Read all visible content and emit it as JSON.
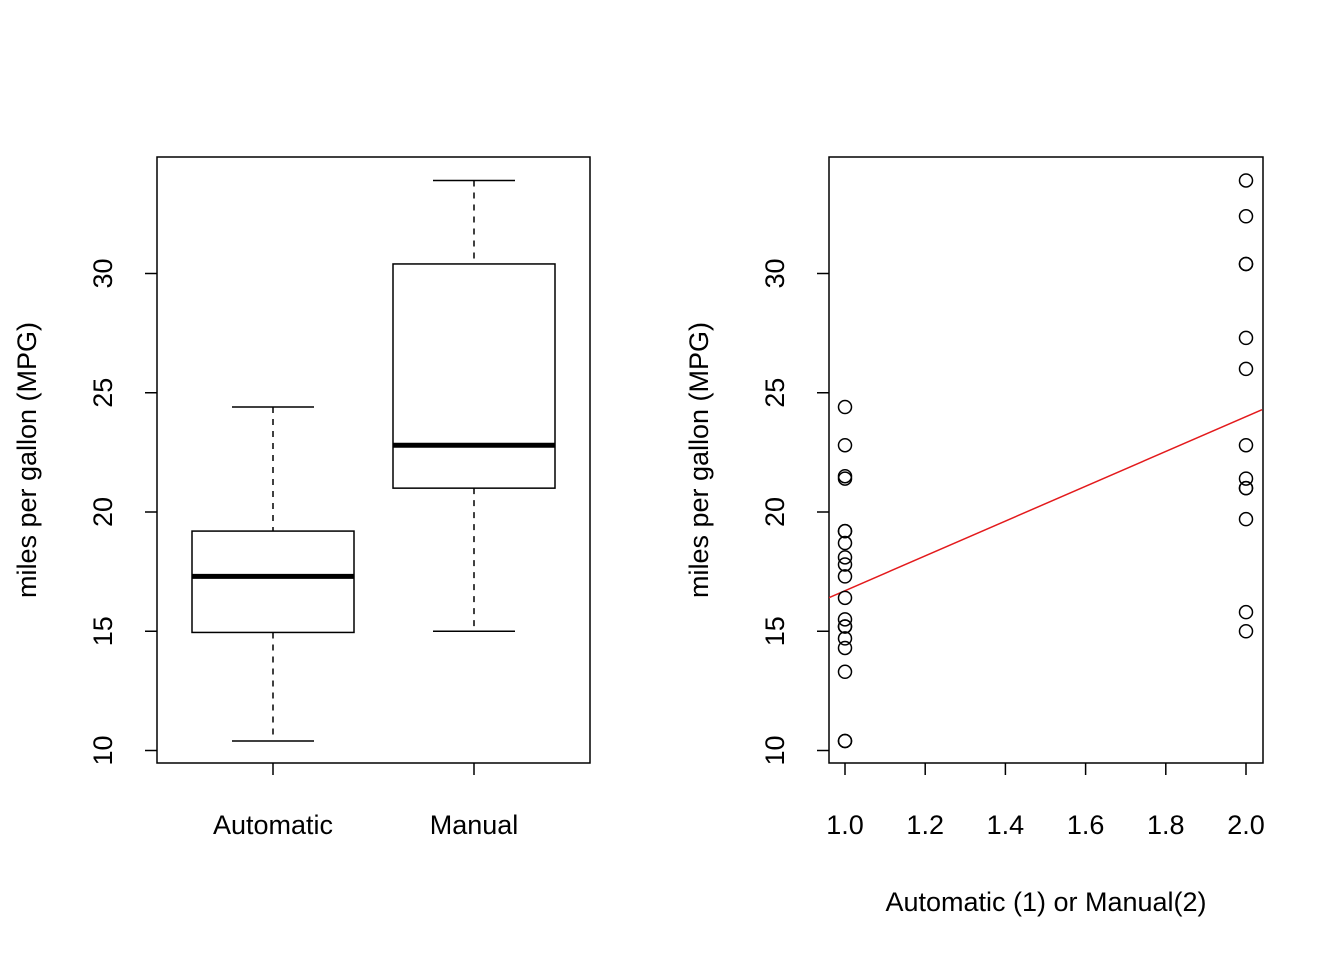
{
  "chart_data": [
    {
      "type": "box",
      "title": "",
      "xlabel": "",
      "ylabel": "miles per gallon (MPG)",
      "ylim": [
        9.5,
        35
      ],
      "yticks": [
        10,
        15,
        20,
        25,
        30
      ],
      "categories": [
        "Automatic",
        "Manual"
      ],
      "boxes": [
        {
          "name": "Automatic",
          "min": 10.4,
          "q1": 14.95,
          "median": 17.3,
          "q3": 19.2,
          "max": 24.4
        },
        {
          "name": "Manual",
          "min": 15.0,
          "q1": 21.0,
          "median": 22.8,
          "q3": 30.4,
          "max": 33.9
        }
      ],
      "grid": false
    },
    {
      "type": "scatter",
      "title": "",
      "xlabel": "Automatic (1) or Manual(2)",
      "ylabel": "miles per gallon (MPG)",
      "xlim": [
        0.96,
        2.04
      ],
      "ylim": [
        9.5,
        35
      ],
      "xticks": [
        "1.0",
        "1.2",
        "1.4",
        "1.6",
        "1.8",
        "2.0"
      ],
      "yticks": [
        10,
        15,
        20,
        25,
        30
      ],
      "x": [
        1,
        1,
        1,
        1,
        1,
        1,
        1,
        1,
        1,
        1,
        1,
        1,
        1,
        1,
        1,
        1,
        1,
        1,
        1,
        2,
        2,
        2,
        2,
        2,
        2,
        2,
        2,
        2,
        2,
        2,
        2,
        2
      ],
      "y": [
        21.4,
        18.7,
        18.1,
        14.3,
        24.4,
        22.8,
        19.2,
        17.8,
        16.4,
        17.3,
        15.2,
        10.4,
        10.4,
        14.7,
        21.5,
        15.5,
        15.2,
        13.3,
        19.2,
        21.0,
        21.0,
        22.8,
        32.4,
        30.4,
        33.9,
        27.3,
        26.0,
        30.4,
        15.8,
        19.7,
        15.0,
        21.4
      ],
      "regression_line": {
        "intercept": 9.4,
        "slope": 7.3,
        "color": "#e31a1c"
      },
      "grid": false
    }
  ]
}
